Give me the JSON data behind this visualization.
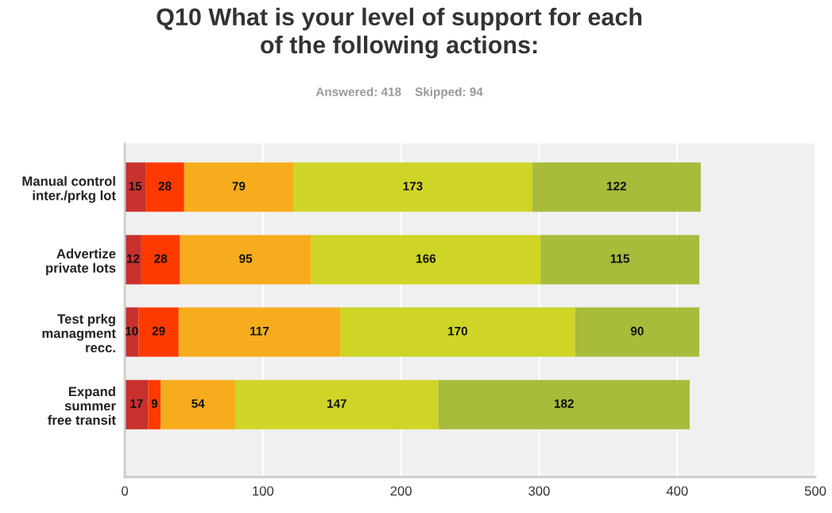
{
  "chart_data": {
    "type": "bar",
    "orientation": "horizontal",
    "stacked": true,
    "data_labels": true,
    "title": "Q10 What is your level of support for each\nof the following actions:",
    "subtitle": "Answered: 418    Skipped: 94",
    "categories": [
      "Manual control\ninter./prkg lot",
      "Advertize\nprivate lots",
      "Test prkg\nmanagment\nrecc.",
      "Expand\nsummer\nfree transit"
    ],
    "series": [
      {
        "color": "#c8312e",
        "values": [
          15,
          12,
          10,
          17
        ]
      },
      {
        "color": "#ff3a00",
        "values": [
          28,
          28,
          29,
          9
        ]
      },
      {
        "color": "#f7ac1e",
        "values": [
          79,
          95,
          117,
          54
        ]
      },
      {
        "color": "#ced526",
        "values": [
          173,
          166,
          170,
          147
        ]
      },
      {
        "color": "#a8bb3a",
        "values": [
          122,
          115,
          90,
          182
        ]
      }
    ],
    "xlim": [
      0,
      500
    ],
    "xticks": [
      0,
      100,
      200,
      300,
      400,
      500
    ],
    "grid": "x",
    "legend": false
  }
}
